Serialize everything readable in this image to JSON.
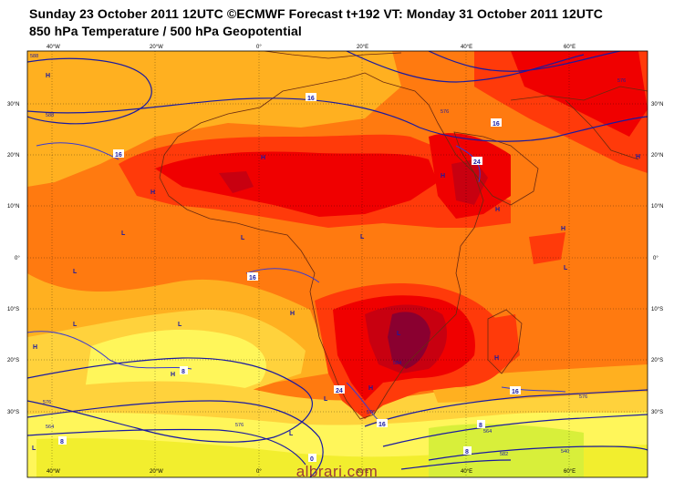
{
  "title_line1": "Sunday 23 October 2011 12UTC ©ECMWF Forecast t+192 VT: Monday 31 October 2011 12UTC",
  "title_line2": "850 hPa Temperature / 500 hPa Geopotential",
  "watermark": "albrari.com",
  "longitude_labels": [
    "40°W",
    "20°W",
    "0°",
    "20°E",
    "40°E",
    "60°E"
  ],
  "latitude_labels": [
    "30°N",
    "20°N",
    "10°N",
    "0°",
    "10°S",
    "20°S",
    "30°S"
  ],
  "pressure_centers": [
    "H",
    "H",
    "H",
    "H",
    "L",
    "L",
    "L",
    "L",
    "H",
    "H",
    "L",
    "L",
    "H",
    "L",
    "H",
    "L",
    "H",
    "H",
    "L",
    "L",
    "H",
    "L",
    "H"
  ],
  "geopotential_labels": [
    "588",
    "588",
    "576",
    "576",
    "576",
    "564",
    "576",
    "584",
    "576",
    "540",
    "582",
    "564",
    "576"
  ],
  "temperature_labels": [
    "16",
    "16",
    "16",
    "24",
    "16",
    "8",
    "16",
    "8",
    "16",
    "8",
    "0",
    "8",
    "24"
  ],
  "colors": {
    "deep_yellow": "#f2ee2e",
    "yellow": "#fff65a",
    "light_orange": "#ffd23c",
    "orange": "#ffb020",
    "dark_orange": "#ff7a10",
    "red_orange": "#ff3a0a",
    "red": "#f00000",
    "dark_red": "#c80010",
    "maroon": "#8a0030",
    "contour_blue": "#1a1aa0",
    "coast_brown": "#6a2a10",
    "watermark": "#9a3a3a"
  }
}
